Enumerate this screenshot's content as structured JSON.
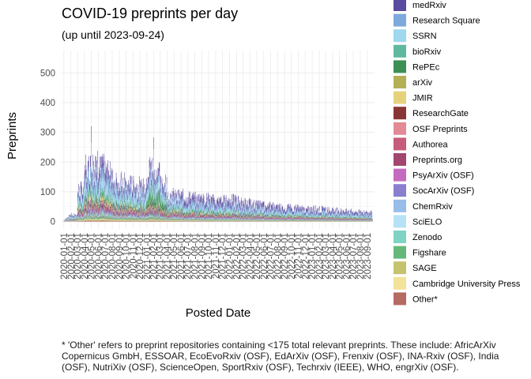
{
  "chart_data": {
    "type": "bar",
    "stacked": true,
    "title": "COVID-19 preprints per day",
    "subtitle": "(up until 2023-09-24)",
    "xlabel": "Posted Date",
    "ylabel": "Preprints",
    "ylim": [
      0,
      550
    ],
    "y_ticks": [
      0,
      100,
      200,
      300,
      400,
      500
    ],
    "x_tick_labels": [
      "2020-01-01",
      "2020-02-01",
      "2020-03-01",
      "2020-04-01",
      "2020-05-01",
      "2020-06-01",
      "2020-07-01",
      "2020-08-01",
      "2020-09-01",
      "2020-10-01",
      "2020-11-01",
      "2020-12-01",
      "2021-01-01",
      "2021-02-01",
      "2021-03-01",
      "2021-04-01",
      "2021-05-01",
      "2021-06-01",
      "2021-07-01",
      "2021-08-01",
      "2021-09-01",
      "2021-10-01",
      "2021-11-01",
      "2021-12-01",
      "2022-01-01",
      "2022-02-01",
      "2022-03-01",
      "2022-04-01",
      "2022-05-01",
      "2022-06-01",
      "2022-07-01",
      "2022-08-01",
      "2022-09-01",
      "2022-10-01",
      "2022-11-01",
      "2022-12-01",
      "2023-01-01",
      "2023-02-01",
      "2023-03-01",
      "2023-04-01",
      "2023-05-01",
      "2023-06-01",
      "2023-07-01",
      "2023-08-01",
      "2023-09-01"
    ],
    "grid": true,
    "legend_position": "right",
    "series": [
      {
        "name": "medRxiv",
        "color": "#5a4aa0"
      },
      {
        "name": "Research Square",
        "color": "#7fa9dc"
      },
      {
        "name": "SSRN",
        "color": "#9fd8ef"
      },
      {
        "name": "bioRxiv",
        "color": "#5fb9a0"
      },
      {
        "name": "RePEc",
        "color": "#3d8f55"
      },
      {
        "name": "arXiv",
        "color": "#b5b055"
      },
      {
        "name": "JMIR",
        "color": "#e6d27d"
      },
      {
        "name": "ResearchGate",
        "color": "#8a3535"
      },
      {
        "name": "OSF Preprints",
        "color": "#e48a96"
      },
      {
        "name": "Authorea",
        "color": "#c45c7a"
      },
      {
        "name": "Preprints.org",
        "color": "#a14770"
      },
      {
        "name": "PsyArXiv (OSF)",
        "color": "#c46bbf"
      },
      {
        "name": "SocArXiv (OSF)",
        "color": "#8a7fcf"
      },
      {
        "name": "ChemRxiv",
        "color": "#97bde8"
      },
      {
        "name": "SciELO",
        "color": "#b5e3f5"
      },
      {
        "name": "Zenodo",
        "color": "#7ed3c3"
      },
      {
        "name": "Figshare",
        "color": "#66b87a"
      },
      {
        "name": "SAGE",
        "color": "#c3c46d"
      },
      {
        "name": "Cambridge University Press",
        "color": "#f2e39a"
      },
      {
        "name": "Other*",
        "color": "#b56a62"
      }
    ],
    "monthly_typical_totals": [
      {
        "month": "2020-01",
        "total": 15
      },
      {
        "month": "2020-02",
        "total": 25
      },
      {
        "month": "2020-03",
        "total": 120
      },
      {
        "month": "2020-04",
        "total": 210
      },
      {
        "month": "2020-05",
        "total": 220
      },
      {
        "month": "2020-06",
        "total": 200
      },
      {
        "month": "2020-07",
        "total": 180
      },
      {
        "month": "2020-08",
        "total": 165
      },
      {
        "month": "2020-09",
        "total": 150
      },
      {
        "month": "2020-10",
        "total": 140
      },
      {
        "month": "2020-11",
        "total": 135
      },
      {
        "month": "2020-12",
        "total": 130
      },
      {
        "month": "2021-01",
        "total": 170
      },
      {
        "month": "2021-02",
        "total": 150
      },
      {
        "month": "2021-03",
        "total": 120
      },
      {
        "month": "2021-04",
        "total": 105
      },
      {
        "month": "2021-05",
        "total": 95
      },
      {
        "month": "2021-06",
        "total": 88
      },
      {
        "month": "2021-07",
        "total": 82
      },
      {
        "month": "2021-08",
        "total": 80
      },
      {
        "month": "2021-09",
        "total": 78
      },
      {
        "month": "2021-10",
        "total": 74
      },
      {
        "month": "2021-11",
        "total": 70
      },
      {
        "month": "2021-12",
        "total": 72
      },
      {
        "month": "2022-01",
        "total": 74
      },
      {
        "month": "2022-02",
        "total": 70
      },
      {
        "month": "2022-03",
        "total": 65
      },
      {
        "month": "2022-04",
        "total": 60
      },
      {
        "month": "2022-05",
        "total": 57
      },
      {
        "month": "2022-06",
        "total": 55
      },
      {
        "month": "2022-07",
        "total": 52
      },
      {
        "month": "2022-08",
        "total": 50
      },
      {
        "month": "2022-09",
        "total": 48
      },
      {
        "month": "2022-10",
        "total": 47
      },
      {
        "month": "2022-11",
        "total": 45
      },
      {
        "month": "2022-12",
        "total": 42
      },
      {
        "month": "2023-01",
        "total": 44
      },
      {
        "month": "2023-02",
        "total": 42
      },
      {
        "month": "2023-03",
        "total": 40
      },
      {
        "month": "2023-04",
        "total": 38
      },
      {
        "month": "2023-05",
        "total": 37
      },
      {
        "month": "2023-06",
        "total": 35
      },
      {
        "month": "2023-07",
        "total": 33
      },
      {
        "month": "2023-08",
        "total": 32
      },
      {
        "month": "2023-09",
        "total": 30
      }
    ],
    "peaks": [
      {
        "date": "2020-05-01",
        "total": 320
      },
      {
        "date": "2021-02-01",
        "total": 240
      }
    ]
  },
  "caption": {
    "lines": [
      "* 'Other' refers to preprint repositories containing <175 total relevant preprints. These include: AfricArXiv",
      "Copernicus GmbH, ESSOAR, EcoEvoRxiv (OSF), EdArXiv (OSF), Frenxiv (OSF), INA-Rxiv (OSF), India",
      "(OSF), NutriXiv (OSF), ScienceOpen, SportRxiv (OSF), Techrxiv (IEEE), WHO, engrXiv (OSF)."
    ]
  }
}
